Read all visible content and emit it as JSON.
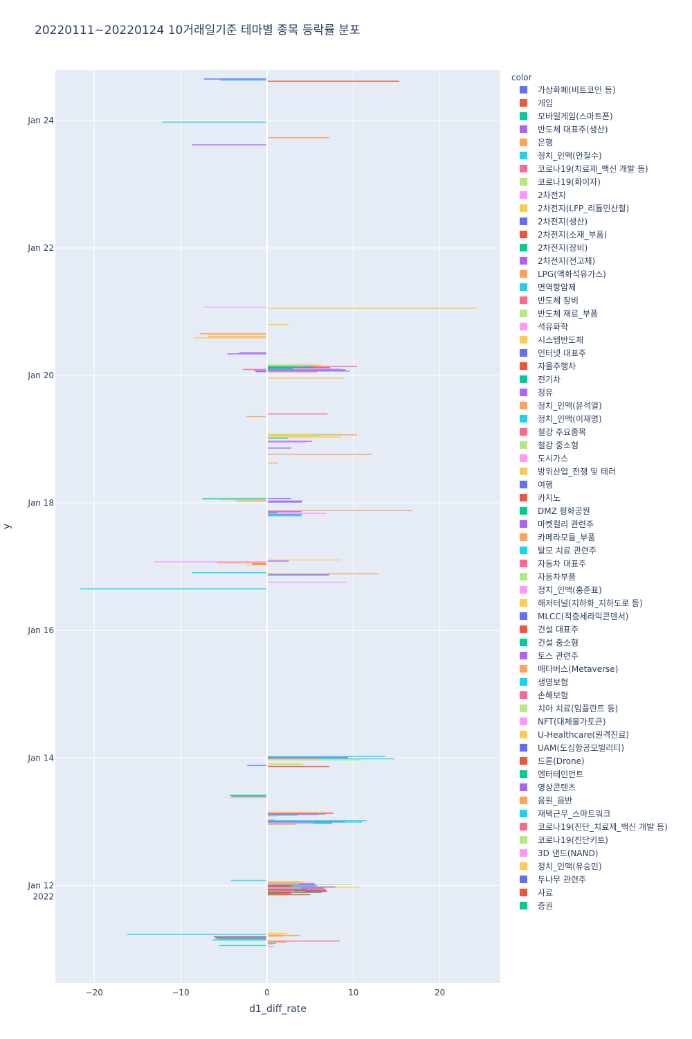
{
  "chart_data": {
    "type": "bar",
    "orientation": "horizontal",
    "title": "20220111~20220124 10거래일기준 테마별 종목 등락률 분포",
    "xlabel": "d1_diff_rate",
    "ylabel": "y",
    "xlim": [
      -24.5,
      27
    ],
    "xticks": [
      -20,
      -10,
      0,
      10,
      20
    ],
    "ylim": [
      "2022-01-10 11:20",
      "2022-01-24 19:00"
    ],
    "yticks": [
      {
        "t": "2022-01-12 00:00",
        "label": "Jan 12",
        "sub": "2022"
      },
      {
        "t": "2022-01-14 00:00",
        "label": "Jan 14"
      },
      {
        "t": "2022-01-16 00:00",
        "label": "Jan 16"
      },
      {
        "t": "2022-01-18 00:00",
        "label": "Jan 18"
      },
      {
        "t": "2022-01-20 00:00",
        "label": "Jan 20"
      },
      {
        "t": "2022-01-22 00:00",
        "label": "Jan 22"
      },
      {
        "t": "2022-01-24 00:00",
        "label": "Jan 24"
      }
    ],
    "legend_title": "color",
    "legend_position": "right",
    "palette": [
      "#636efa",
      "#EF553B",
      "#00cc96",
      "#ab63fa",
      "#FFA15A",
      "#19d3f3",
      "#FF6692",
      "#B6E880",
      "#FF97FF",
      "#FECB52"
    ],
    "categories": [
      "가상화폐(비트코인 등)",
      "게임",
      "모바일게임(스마트폰)",
      "반도체 대표주(생산)",
      "은행",
      "정치_인맥(안철수)",
      "코로나19(치료제_백신 개발 등)",
      "코로나19(화이자)",
      "2차전지",
      "2차전지(LFP_리튬인산철)",
      "2차전지(생산)",
      "2차전지(소재_부품)",
      "2차전지(장비)",
      "2차전지(전고체)",
      "LPG(액화석유가스)",
      "면역항암제",
      "반도체 장비",
      "반도체 재료_부품",
      "석유화학",
      "시스템반도체",
      "인터넷 대표주",
      "자율주행차",
      "전기차",
      "정유",
      "정치_인맥(윤석열)",
      "정치_인맥(이재명)",
      "철강 주요종목",
      "철강 중소형",
      "도시가스",
      "방위산업_전쟁 및 테러",
      "여행",
      "카지노",
      "DMZ 평화공원",
      "마켓컬리 관련주",
      "카메라모듈_부품",
      "탈모 치료 관련주",
      "자동차 대표주",
      "자동차부품",
      "정치_인맥(홍준표)",
      "해저터널(지하화_지하도로 등)",
      "MLCC(적층세라믹콘덴서)",
      "건설 대표주",
      "건설 중소형",
      "토스 관련주",
      "메타버스(Metaverse)",
      "생명보험",
      "손해보험",
      "치아 치료(임플란트 등)",
      "NFT(대체불가토큰)",
      "U-Healthcare(원격진료)",
      "UAM(도심항공모빌리티)",
      "드론(Drone)",
      "엔터테인먼트",
      "영상콘텐츠",
      "음원_음반",
      "재택근무_스마트워크",
      "코로나19(진단_치료제_백신 개발 등)",
      "코로나19(진단키트)",
      "3D 낸드(NAND)",
      "정치_인맥(유승민)",
      "두나무 관련주",
      "사료",
      "증권"
    ],
    "groups": [
      {
        "t": "2022-01-11 03:30",
        "bars": [
          [
            9,
            2.5
          ],
          [
            19,
            1.8
          ],
          [
            4,
            1.2
          ],
          [
            0,
            -6.2
          ],
          [
            1,
            -6.0
          ],
          [
            2,
            -5.8
          ],
          [
            5,
            -6.3
          ],
          [
            6,
            8.4
          ],
          [
            14,
            2.2
          ],
          [
            22,
            1.0
          ],
          [
            29,
            0.6
          ],
          [
            32,
            -5.5
          ],
          [
            38,
            0.8
          ]
        ]
      },
      {
        "t": "2022-01-11 05:10",
        "bars": [
          [
            5,
            -16.2
          ],
          [
            14,
            3.8
          ],
          [
            9,
            2.0
          ]
        ]
      },
      {
        "t": "2022-01-11 21:00",
        "bars": [
          [
            0,
            6.0
          ],
          [
            2,
            6.3
          ],
          [
            3,
            2.8
          ],
          [
            11,
            5.0
          ],
          [
            19,
            2.4
          ]
        ]
      },
      {
        "t": "2022-01-11 21:40",
        "bars": [
          [
            7,
            6.2
          ],
          [
            20,
            6.8
          ],
          [
            21,
            7.0
          ],
          [
            30,
            2.6
          ],
          [
            12,
            1.5
          ]
        ]
      },
      {
        "t": "2022-01-11 22:20",
        "bars": [
          [
            9,
            10.7
          ],
          [
            14,
            3.0
          ],
          [
            16,
            6.9
          ],
          [
            11,
            6.8
          ],
          [
            24,
            4.4
          ],
          [
            31,
            2.8
          ]
        ]
      },
      {
        "t": "2022-01-11 23:00",
        "bars": [
          [
            8,
            5.5
          ],
          [
            3,
            7.9
          ],
          [
            13,
            6.6
          ],
          [
            40,
            4.6
          ],
          [
            36,
            3.2
          ]
        ]
      },
      {
        "t": "2022-01-11 23:40",
        "bars": [
          [
            7,
            9.8
          ],
          [
            15,
            5.8
          ],
          [
            18,
            3.1
          ],
          [
            27,
            4.0
          ]
        ]
      },
      {
        "t": "2022-01-12 00:20",
        "bars": [
          [
            4,
            3.8
          ],
          [
            16,
            5.5
          ],
          [
            20,
            5.6
          ],
          [
            21,
            2.8
          ],
          [
            41,
            3.0
          ]
        ]
      },
      {
        "t": "2022-01-12 01:00",
        "bars": [
          [
            5,
            -4.2
          ],
          [
            29,
            4.4
          ],
          [
            14,
            1.5
          ],
          [
            47,
            3.7
          ],
          [
            33,
            2.2
          ]
        ]
      },
      {
        "t": "2022-01-12 23:40",
        "bars": [
          [
            1,
            0.8
          ],
          [
            15,
            11.0
          ],
          [
            12,
            7.5
          ],
          [
            24,
            3.3
          ]
        ]
      },
      {
        "t": "2022-01-13 00:10",
        "bars": [
          [
            18,
            1.0
          ],
          [
            5,
            11.5
          ],
          [
            10,
            9.0
          ],
          [
            28,
            5.3
          ]
        ]
      },
      {
        "t": "2022-01-13 02:30",
        "bars": [
          [
            2,
            6.8
          ],
          [
            5,
            3.5
          ],
          [
            7,
            1.2
          ]
        ]
      },
      {
        "t": "2022-01-13 03:10",
        "bars": [
          [
            9,
            7.5
          ],
          [
            6,
            7.7
          ],
          [
            3,
            6.0
          ]
        ]
      },
      {
        "t": "2022-01-13 09:30",
        "bars": [
          [
            2,
            -4.3
          ],
          [
            3,
            -4.1
          ],
          [
            17,
            -4.4
          ]
        ]
      },
      {
        "t": "2022-01-13 21:00",
        "bars": [
          [
            0,
            -2.3
          ],
          [
            1,
            7.2
          ]
        ]
      },
      {
        "t": "2022-01-13 21:40",
        "bars": [
          [
            9,
            3.9
          ],
          [
            17,
            4.3
          ]
        ]
      },
      {
        "t": "2022-01-13 23:30",
        "bars": [
          [
            5,
            14.7
          ],
          [
            7,
            11.0
          ]
        ]
      },
      {
        "t": "2022-01-14 00:10",
        "bars": [
          [
            5,
            13.7
          ],
          [
            0,
            9.4
          ],
          [
            4,
            6.0
          ]
        ]
      },
      {
        "t": "2022-01-16 15:40",
        "bars": [
          [
            5,
            -21.6
          ]
        ]
      },
      {
        "t": "2022-01-16 18:10",
        "bars": [
          [
            8,
            9.2
          ]
        ]
      },
      {
        "t": "2022-01-16 21:20",
        "bars": [
          [
            5,
            -8.7
          ],
          [
            14,
            12.9
          ],
          [
            10,
            7.2
          ]
        ]
      },
      {
        "t": "2022-01-17 00:50",
        "bars": [
          [
            1,
            -1.7
          ],
          [
            19,
            -2.4
          ]
        ]
      },
      {
        "t": "2022-01-17 01:40",
        "bars": [
          [
            8,
            -13.1
          ],
          [
            4,
            -5.8
          ]
        ]
      },
      {
        "t": "2022-01-17 02:20",
        "bars": [
          [
            9,
            8.5
          ],
          [
            3,
            2.5
          ]
        ]
      },
      {
        "t": "2022-01-17 19:10",
        "bars": [
          [
            5,
            4.0
          ]
        ]
      },
      {
        "t": "2022-01-17 19:50",
        "bars": [
          [
            8,
            6.9
          ],
          [
            0,
            4.0
          ]
        ]
      },
      {
        "t": "2022-01-17 20:30",
        "bars": [
          [
            3,
            4.0
          ],
          [
            12,
            1.2
          ]
        ]
      },
      {
        "t": "2022-01-17 21:10",
        "bars": [
          [
            4,
            16.8
          ]
        ]
      },
      {
        "t": "2022-01-18 00:30",
        "bars": [
          [
            0,
            4.1
          ],
          [
            3,
            4.0
          ]
        ]
      },
      {
        "t": "2022-01-18 01:10",
        "bars": [
          [
            2,
            -7.5
          ],
          [
            7,
            -5.5
          ],
          [
            4,
            -3.6
          ]
        ]
      },
      {
        "t": "2022-01-18 01:40",
        "bars": [
          [
            3,
            2.8
          ]
        ]
      },
      {
        "t": "2022-01-18 15:00",
        "bars": [
          [
            4,
            1.3
          ]
        ]
      },
      {
        "t": "2022-01-18 18:20",
        "bars": [
          [
            4,
            12.1
          ]
        ]
      },
      {
        "t": "2022-01-18 20:40",
        "bars": [
          [
            13,
            2.8
          ]
        ]
      },
      {
        "t": "2022-01-18 23:00",
        "bars": [
          [
            3,
            5.2
          ],
          [
            8,
            4.5
          ]
        ]
      },
      {
        "t": "2022-01-19 01:00",
        "bars": [
          [
            4,
            10.4
          ],
          [
            7,
            6.1
          ],
          [
            9,
            8.6
          ],
          [
            12,
            2.4
          ]
        ]
      },
      {
        "t": "2022-01-19 01:40",
        "bars": [
          [
            17,
            8.6
          ],
          [
            29,
            5.5
          ]
        ]
      },
      {
        "t": "2022-01-19 08:30",
        "bars": [
          [
            4,
            -2.4
          ]
        ]
      },
      {
        "t": "2022-01-19 09:30",
        "bars": [
          [
            6,
            7.0
          ]
        ]
      },
      {
        "t": "2022-01-19 23:00",
        "bars": [
          [
            9,
            8.9
          ]
        ]
      },
      {
        "t": "2022-01-20 01:20",
        "bars": [
          [
            4,
            5.8
          ]
        ]
      },
      {
        "t": "2022-01-20 01:50",
        "bars": [
          [
            6,
            -2.8
          ],
          [
            3,
            -1.5
          ],
          [
            0,
            -1.3
          ]
        ]
      },
      {
        "t": "2022-01-20 02:30",
        "bars": [
          [
            6,
            10.4
          ],
          [
            1,
            7.3
          ],
          [
            18,
            8.5
          ],
          [
            0,
            9.1
          ],
          [
            3,
            9.6
          ]
        ]
      },
      {
        "t": "2022-01-20 03:10",
        "bars": [
          [
            9,
            6.3
          ],
          [
            3,
            5.7
          ],
          [
            2,
            5.3
          ],
          [
            12,
            3.0
          ]
        ]
      },
      {
        "t": "2022-01-20 03:40",
        "bars": [
          [
            7,
            6.0
          ],
          [
            17,
            4.2
          ],
          [
            2,
            3.4
          ]
        ]
      },
      {
        "t": "2022-01-20 08:20",
        "bars": [
          [
            3,
            -3.2
          ],
          [
            13,
            -4.6
          ]
        ]
      },
      {
        "t": "2022-01-20 14:20",
        "bars": [
          [
            4,
            -6.9
          ],
          [
            9,
            -8.5
          ]
        ]
      },
      {
        "t": "2022-01-20 15:30",
        "bars": [
          [
            14,
            -7.8
          ],
          [
            29,
            -7.0
          ]
        ]
      },
      {
        "t": "2022-01-20 19:10",
        "bars": [
          [
            9,
            2.5
          ]
        ]
      },
      {
        "t": "2022-01-21 01:30",
        "bars": [
          [
            8,
            -7.3
          ],
          [
            9,
            24.3
          ]
        ]
      },
      {
        "t": "2022-01-23 14:50",
        "bars": [
          [
            3,
            -8.7
          ]
        ]
      },
      {
        "t": "2022-01-23 17:30",
        "bars": [
          [
            4,
            7.2
          ]
        ]
      },
      {
        "t": "2022-01-23 23:20",
        "bars": [
          [
            5,
            -12.1
          ]
        ]
      },
      {
        "t": "2022-01-24 15:10",
        "bars": [
          [
            0,
            -7.3
          ],
          [
            5,
            -5.4
          ],
          [
            1,
            15.3
          ]
        ]
      }
    ]
  }
}
